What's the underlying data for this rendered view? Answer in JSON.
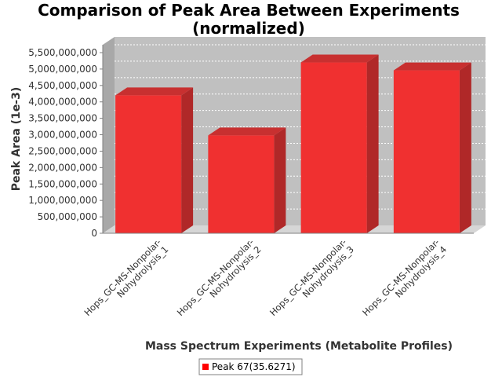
{
  "chart_data": {
    "type": "bar",
    "title_lines": [
      "Comparison of Peak Area Between Experiments",
      "(normalized)"
    ],
    "xlabel": "Mass Spectrum Experiments (Metabolite Profiles)",
    "ylabel": "Peak Area (1e-3)",
    "categories": [
      [
        "Hops_GC-MS-Nonpolar-",
        "Nohydrolysis_1"
      ],
      [
        "Hops_GC-MS-Nonpolar-",
        "Nohydrolysis_2"
      ],
      [
        "Hops_GC-MS-Nonpolar-",
        "Nohydrolysis_3"
      ],
      [
        "Hops_GC-MS-Nonpolar-",
        "Nohydrolysis_4"
      ]
    ],
    "series": [
      {
        "name": "Peak 67(35.6271)",
        "values": [
          4200000000,
          2980000000,
          5200000000,
          4960000000
        ]
      }
    ],
    "yticks": [
      "0",
      "500,000,000",
      "1,000,000,000",
      "1,500,000,000",
      "2,000,000,000",
      "2,500,000,000",
      "3,000,000,000",
      "3,500,000,000",
      "4,000,000,000",
      "4,500,000,000",
      "5,000,000,000",
      "5,500,000,000"
    ],
    "ylim": [
      0,
      5500000000
    ],
    "ystep": 500000000,
    "grid": true,
    "legend_position": "bottom",
    "colors": {
      "bar_front": "#f03030",
      "bar_top": "#c83030",
      "bar_side": "#b02828",
      "plot_back": "#c0c0c0",
      "plot_floor": "#d6d6d6",
      "plot_wall": "#a8a8a8",
      "legend_swatch": "#ff0000"
    }
  }
}
